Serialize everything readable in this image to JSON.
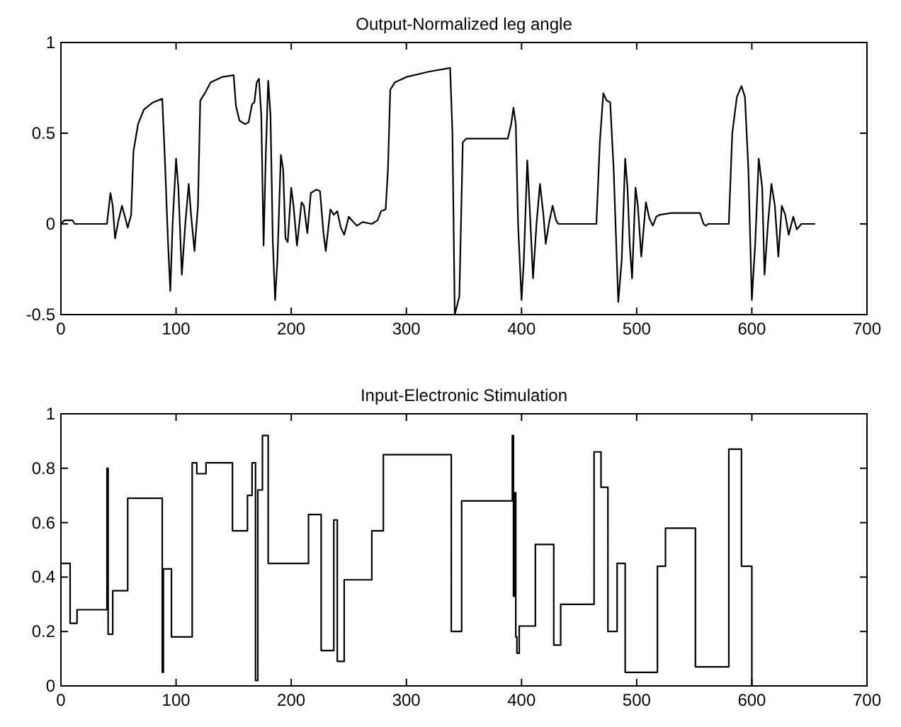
{
  "chart_data": [
    {
      "type": "line",
      "title": "Output-Normalized leg angle",
      "xlim": [
        0,
        700
      ],
      "xticks": [
        0,
        100,
        200,
        300,
        400,
        500,
        600,
        700
      ],
      "ylim": [
        -0.5,
        1
      ],
      "yticks": [
        -0.5,
        0,
        0.5,
        1
      ],
      "grid": false,
      "series": [
        {
          "color": "#000000",
          "x": [
            0,
            3,
            10,
            12,
            40,
            43,
            45,
            47,
            50,
            53,
            56,
            58,
            61,
            63,
            67,
            72,
            80,
            88,
            90,
            93,
            95,
            97,
            100,
            102,
            105,
            108,
            111,
            113,
            116,
            119,
            121,
            125,
            130,
            140,
            150,
            152,
            155,
            160,
            163,
            166,
            168,
            170,
            172,
            174,
            176,
            178,
            180,
            182,
            184,
            186,
            188,
            191,
            193,
            195,
            197,
            200,
            202,
            205,
            209,
            211,
            214,
            217,
            222,
            225,
            228,
            230,
            234,
            237,
            240,
            243,
            246,
            250,
            254,
            257,
            262,
            270,
            275,
            278,
            282,
            284,
            286,
            290,
            300,
            320,
            338,
            340,
            342,
            346,
            349,
            352,
            370,
            388,
            391,
            393,
            395,
            397,
            400,
            402,
            405,
            407,
            410,
            413,
            416,
            419,
            421,
            424,
            427,
            430,
            432,
            465,
            468,
            471,
            474,
            477,
            480,
            484,
            487,
            490,
            492,
            494,
            496,
            499,
            501,
            504,
            508,
            511,
            514,
            517,
            520,
            530,
            555,
            558,
            560,
            562,
            580,
            583,
            587,
            591,
            594,
            597,
            600,
            603,
            606,
            609,
            611,
            614,
            617,
            620,
            623,
            626,
            629,
            632,
            636,
            639,
            643,
            655
          ],
          "values": [
            0,
            0.02,
            0.02,
            0,
            0,
            0.17,
            0.1,
            -0.08,
            0.02,
            0.1,
            0.03,
            -0.02,
            0.05,
            0.4,
            0.55,
            0.63,
            0.67,
            0.69,
            0.4,
            -0.1,
            -0.37,
            0,
            0.36,
            0.2,
            -0.28,
            0,
            0.22,
            0.05,
            -0.15,
            0.1,
            0.68,
            0.72,
            0.78,
            0.81,
            0.82,
            0.65,
            0.57,
            0.55,
            0.56,
            0.66,
            0.67,
            0.78,
            0.8,
            0.6,
            -0.12,
            0.4,
            0.79,
            0.6,
            -0.1,
            -0.42,
            -0.2,
            0.38,
            0.3,
            -0.08,
            -0.1,
            0.2,
            0.1,
            -0.12,
            0.12,
            0.1,
            -0.05,
            0.17,
            0.19,
            0.18,
            -0.05,
            -0.15,
            0.08,
            0.05,
            0.07,
            -0.02,
            -0.06,
            0.04,
            0.01,
            -0.01,
            0.01,
            0,
            0.02,
            0.07,
            0.08,
            0.3,
            0.74,
            0.78,
            0.81,
            0.84,
            0.86,
            0.5,
            -0.5,
            -0.4,
            0.45,
            0.47,
            0.47,
            0.47,
            0.55,
            0.64,
            0.55,
            0,
            -0.42,
            -0.2,
            0.35,
            0.1,
            -0.3,
            0,
            0.22,
            0.05,
            -0.11,
            0.01,
            0.1,
            0.02,
            0,
            0,
            0.45,
            0.72,
            0.68,
            0.67,
            0.3,
            -0.43,
            -0.2,
            0.36,
            0.2,
            -0.12,
            -0.3,
            0.2,
            0.1,
            -0.18,
            0.12,
            0.03,
            -0.01,
            0.04,
            0.05,
            0.06,
            0.06,
            0,
            -0.01,
            0,
            0,
            0.5,
            0.7,
            0.76,
            0.7,
            0.3,
            -0.42,
            -0.1,
            0.36,
            0.2,
            -0.28,
            0,
            0.22,
            0.1,
            -0.18,
            0.1,
            0.05,
            -0.06,
            0.04,
            -0.03,
            0,
            0
          ]
        }
      ]
    },
    {
      "type": "step",
      "title": "Input-Electronic Stimulation",
      "xlim": [
        0,
        700
      ],
      "xticks": [
        0,
        100,
        200,
        300,
        400,
        500,
        600,
        700
      ],
      "ylim": [
        0,
        1
      ],
      "yticks": [
        0,
        0.2,
        0.4,
        0.6,
        0.8,
        1
      ],
      "grid": false,
      "series": [
        {
          "color": "#000000",
          "x": [
            0,
            8,
            14,
            40,
            41,
            45,
            58,
            88,
            89,
            96,
            114,
            118,
            126,
            149,
            162,
            166,
            169,
            171,
            175,
            180,
            215,
            226,
            237,
            240,
            246,
            270,
            280,
            339,
            348,
            392,
            393,
            394,
            395,
            396,
            398,
            412,
            428,
            434,
            463,
            469,
            475,
            483,
            490,
            518,
            525,
            551,
            580,
            591,
            600
          ],
          "values": [
            0.45,
            0.23,
            0.28,
            0.8,
            0.19,
            0.35,
            0.69,
            0.05,
            0.43,
            0.18,
            0.82,
            0.78,
            0.82,
            0.57,
            0.7,
            0.82,
            0.02,
            0.72,
            0.92,
            0.45,
            0.63,
            0.13,
            0.61,
            0.09,
            0.39,
            0.57,
            0.85,
            0.2,
            0.68,
            0.92,
            0.33,
            0.71,
            0.18,
            0.12,
            0.22,
            0.52,
            0.15,
            0.3,
            0.86,
            0.73,
            0.2,
            0.45,
            0.05,
            0.44,
            0.58,
            0.07,
            0.87,
            0.44,
            0
          ]
        }
      ]
    }
  ]
}
